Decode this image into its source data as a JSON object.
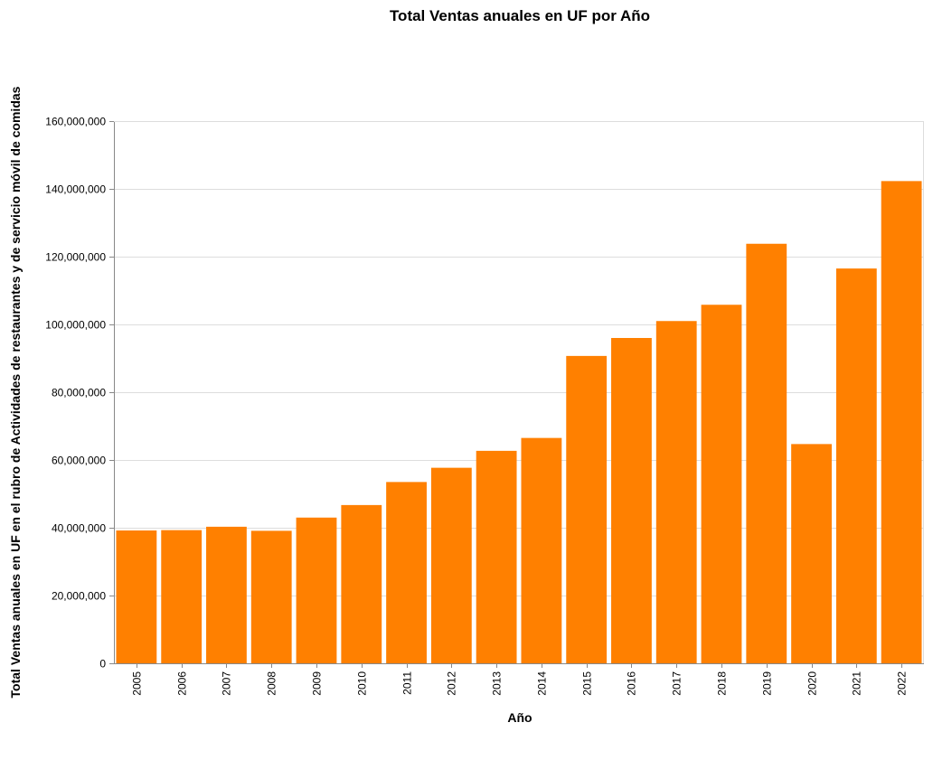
{
  "chart_data": {
    "type": "bar",
    "title": "Total Ventas anuales en UF por Año",
    "xlabel": "Año",
    "ylabel": "Total Ventas anuales en UF en el rubro de Actividades de restaurantes y de servicio móvil de comidas",
    "categories": [
      "2005",
      "2006",
      "2007",
      "2008",
      "2009",
      "2010",
      "2011",
      "2012",
      "2013",
      "2014",
      "2015",
      "2016",
      "2017",
      "2018",
      "2019",
      "2020",
      "2021",
      "2022"
    ],
    "values": [
      39200000,
      39300000,
      40300000,
      39100000,
      43000000,
      46700000,
      53500000,
      57700000,
      62700000,
      66500000,
      90700000,
      96000000,
      101000000,
      105800000,
      123800000,
      64700000,
      116500000,
      142300000
    ],
    "ylim": [
      0,
      160000000
    ],
    "yticks": [
      0,
      20000000,
      40000000,
      60000000,
      80000000,
      100000000,
      120000000,
      140000000,
      160000000
    ],
    "ytick_labels": [
      "0",
      "20,000,000",
      "40,000,000",
      "60,000,000",
      "80,000,000",
      "100,000,000",
      "120,000,000",
      "140,000,000",
      "160,000,000"
    ],
    "grid": true,
    "bar_color": "#ff8000"
  }
}
